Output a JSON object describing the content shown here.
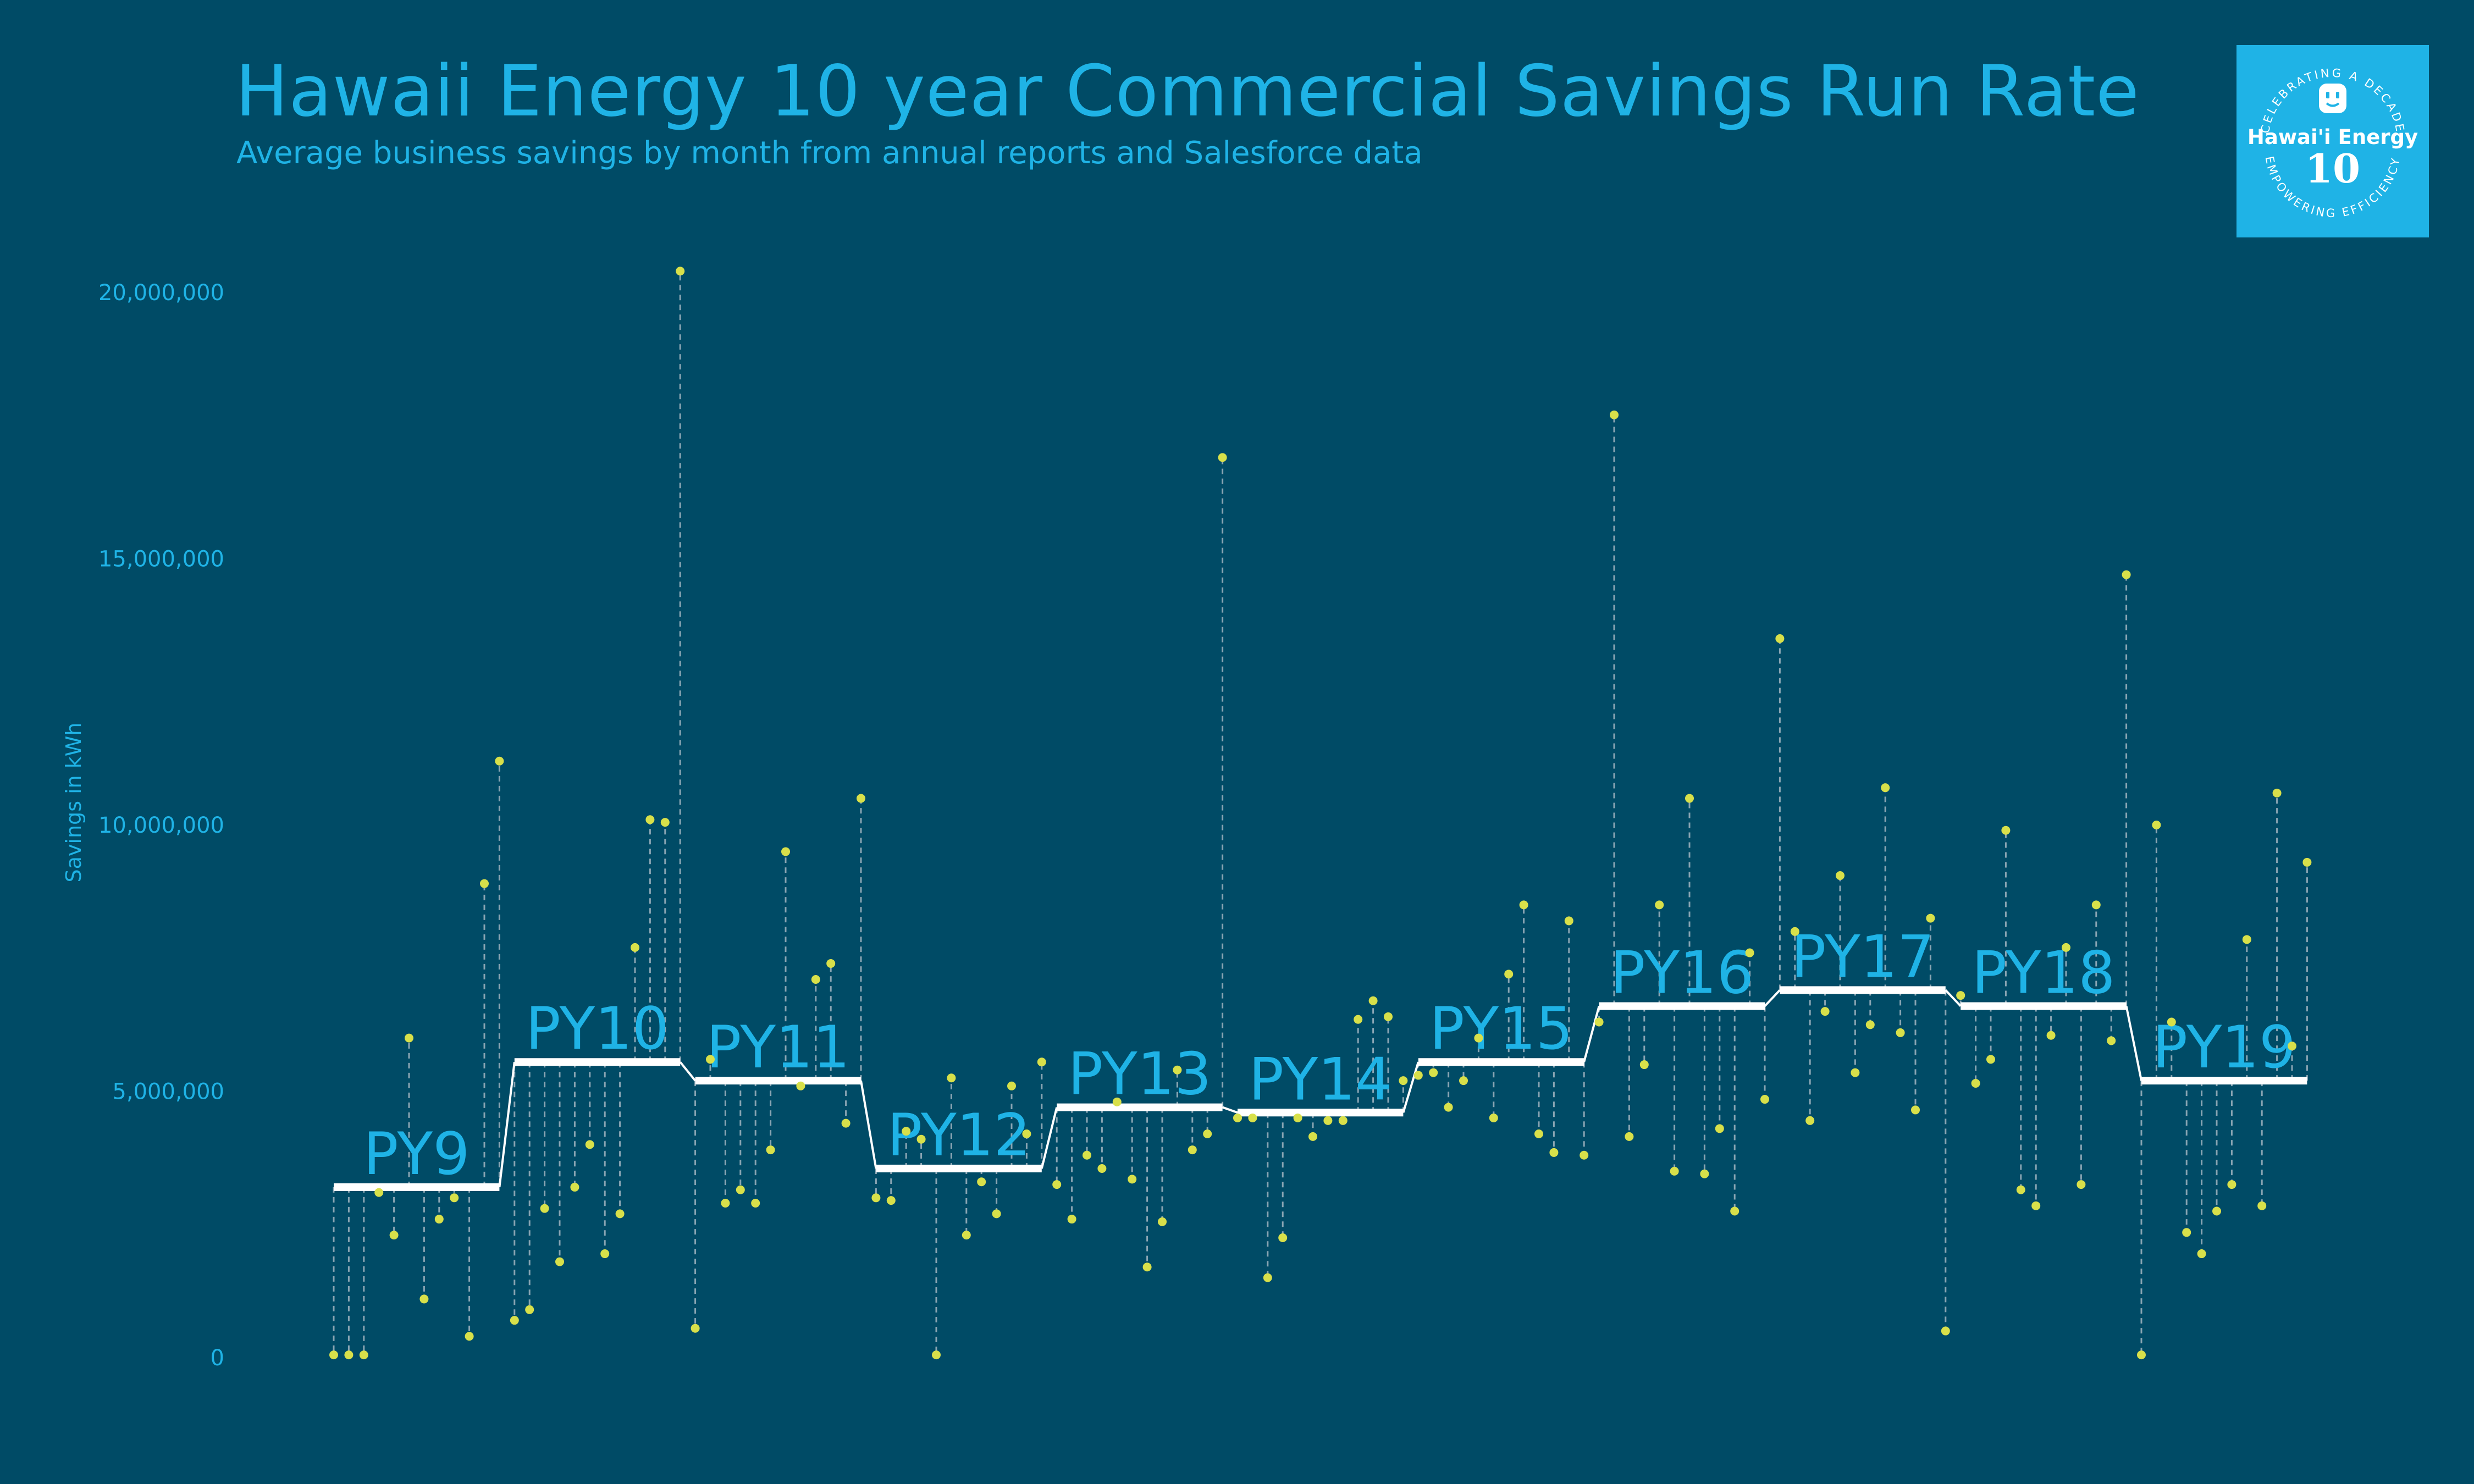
{
  "chart_data": {
    "type": "scatter",
    "title": "Hawaii Energy 10 year Commercial Savings Run Rate",
    "subtitle": "Average business savings by month from annual reports and Salesforce data",
    "ylabel": "Savings in kWh",
    "xlabel": "",
    "ylim": [
      0,
      20000000
    ],
    "yticks": [
      0,
      5000000,
      10000000,
      15000000,
      20000000
    ],
    "ytick_labels": [
      "0",
      "5,000,000",
      "10,000,000",
      "15,000,000",
      "20,000,000"
    ],
    "grid": false,
    "colors": {
      "background": "#004b66",
      "text": "#1fb3e6",
      "points": "#d8e04a",
      "run_rate": "#ffffff",
      "stems": "#8aa5b3"
    },
    "series": [
      {
        "name": "Monthly savings",
        "program_years": [
          {
            "label": "PY9",
            "average": 3200000,
            "values": [
              50000,
              50000,
              50000,
              3100000,
              2300000,
              6000000,
              1100000,
              2600000,
              3000000,
              400000,
              8900000,
              11200000
            ]
          },
          {
            "label": "PY10",
            "average": 5550000,
            "values": [
              700000,
              900000,
              2800000,
              1800000,
              3200000,
              4000000,
              1950000,
              2700000,
              7700000,
              10100000,
              10050000,
              20400000
            ]
          },
          {
            "label": "PY11",
            "average": 5200000,
            "values": [
              550000,
              5600000,
              2900000,
              3150000,
              2900000,
              3900000,
              9500000,
              5100000,
              7100000,
              7400000,
              4400000,
              10500000
            ]
          },
          {
            "label": "PY12",
            "average": 3550000,
            "values": [
              3000000,
              2950000,
              4250000,
              4100000,
              50000,
              5250000,
              2300000,
              3300000,
              2700000,
              5100000,
              4200000,
              5550000
            ]
          },
          {
            "label": "PY13",
            "average": 4700000,
            "values": [
              3250000,
              2600000,
              3800000,
              3550000,
              4800000,
              3350000,
              1700000,
              2550000,
              5400000,
              3900000,
              4200000,
              16900000
            ]
          },
          {
            "label": "PY14",
            "average": 4600000,
            "values": [
              4500000,
              4500000,
              1500000,
              2250000,
              4500000,
              4150000,
              4450000,
              4450000,
              6350000,
              6700000,
              6400000,
              5200000
            ]
          },
          {
            "label": "PY15",
            "average": 5550000,
            "values": [
              5300000,
              5350000,
              4700000,
              5200000,
              6000000,
              4500000,
              7200000,
              8500000,
              4200000,
              3850000,
              8200000,
              3800000
            ]
          },
          {
            "label": "PY16",
            "average": 6600000,
            "values": [
              6300000,
              17700000,
              4150000,
              5500000,
              8500000,
              3500000,
              10500000,
              3450000,
              4300000,
              2750000,
              7600000,
              4850000
            ]
          },
          {
            "label": "PY17",
            "average": 6900000,
            "values": [
              13500000,
              8000000,
              4450000,
              6500000,
              9050000,
              5350000,
              6250000,
              10700000,
              6100000,
              4650000,
              8250000,
              500000
            ]
          },
          {
            "label": "PY18",
            "average": 6600000,
            "values": [
              6800000,
              5150000,
              5600000,
              9900000,
              3150000,
              2850000,
              6050000,
              7700000,
              3250000,
              8500000,
              5950000,
              14700000
            ]
          },
          {
            "label": "PY19",
            "average": 5200000,
            "values": [
              50000,
              10000000,
              6300000,
              2350000,
              1950000,
              2750000,
              3250000,
              7850000,
              2850000,
              10600000,
              5850000,
              9300000
            ]
          }
        ]
      }
    ],
    "logo": {
      "ring_top": "CELEBRATING A DECADE",
      "name": "Hawai'i Energy",
      "number": "10",
      "ring_bottom": "EMPOWERING EFFICIENCY"
    }
  }
}
